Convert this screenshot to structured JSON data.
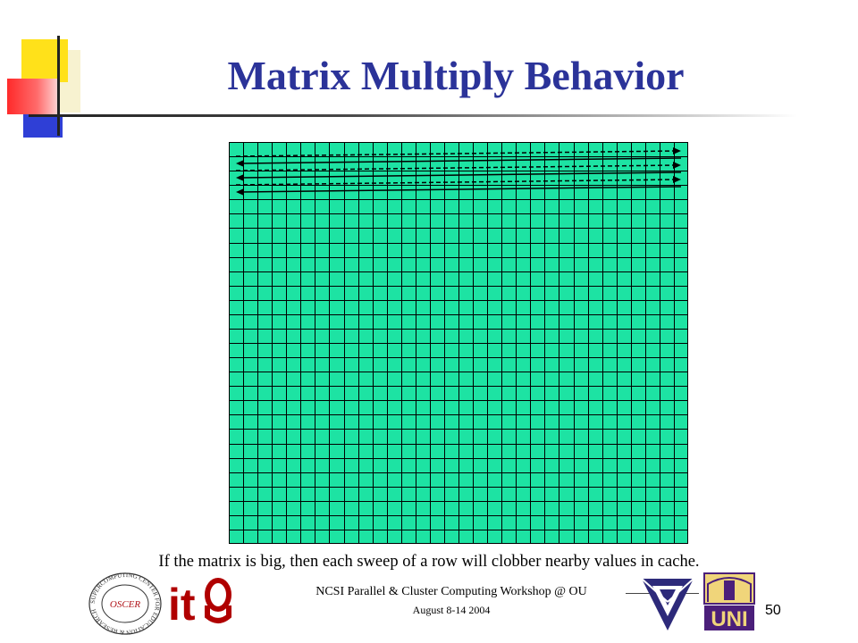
{
  "slide": {
    "title": "Matrix Multiply Behavior",
    "caption": "If the matrix is big, then each sweep of a row will clobber nearby values in cache.",
    "footer": "NCSI Parallel & Cluster Computing Workshop @ OU",
    "date": "August 8-14 2004",
    "page_number": "50"
  },
  "matrix": {
    "fill_color": "#1de3a3",
    "line_color": "#000000",
    "columns": 32,
    "rows": 28,
    "sweeps": [
      {
        "direction": "right"
      },
      {
        "direction": "left"
      },
      {
        "direction": "right"
      },
      {
        "direction": "left"
      },
      {
        "direction": "right"
      },
      {
        "direction": "left"
      }
    ]
  },
  "logos": {
    "supercomputing_seal_text": "SUPERCOMPUTING CENTER FOR EDUCATION & RESEARCH",
    "oscer_text": "OSCER",
    "it_text": "it",
    "uni_text": "UNI"
  },
  "colors": {
    "title": "#2b3399",
    "uni_purple": "#4b1f7a",
    "ou_crimson": "#841617"
  }
}
